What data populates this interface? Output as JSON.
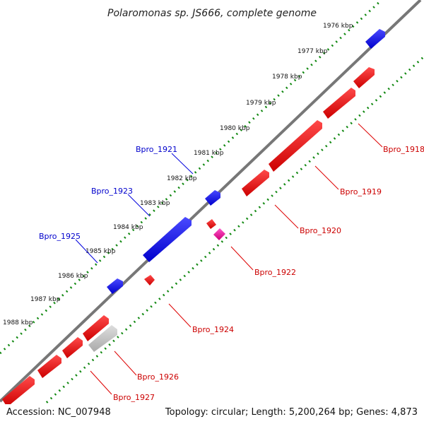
{
  "title": "Polaromonas sp. JS666, complete genome",
  "footer": {
    "accession": "Accession: NC_007948",
    "stats": "Topology: circular; Length: 5,200,264 bp; Genes: 4,873"
  },
  "ruler_ticks": [
    "1976 kbp",
    "1977 kbp",
    "1978 kbp",
    "1979 kbp",
    "1980 kbp",
    "1981 kbp",
    "1982 kbp",
    "1983 kbp",
    "1984 kbp",
    "1985 kbp",
    "1986 kbp",
    "1987 kbp",
    "1988 kbp"
  ],
  "gene_labels_plus": [
    "Bpro_1921",
    "Bpro_1923",
    "Bpro_1925"
  ],
  "gene_labels_minus": [
    "Bpro_1918",
    "Bpro_1919",
    "Bpro_1920",
    "Bpro_1922",
    "Bpro_1924",
    "Bpro_1926",
    "Bpro_1927"
  ],
  "colors": {
    "plus_strand": "#0000ee",
    "minus_strand": "#ee0000",
    "rna": "#ee1199",
    "pseudo": "#bbbbbb",
    "ruler": "#118811",
    "backbone": "#777777",
    "plus_label": "#0000cc",
    "minus_label": "#cc0000"
  }
}
